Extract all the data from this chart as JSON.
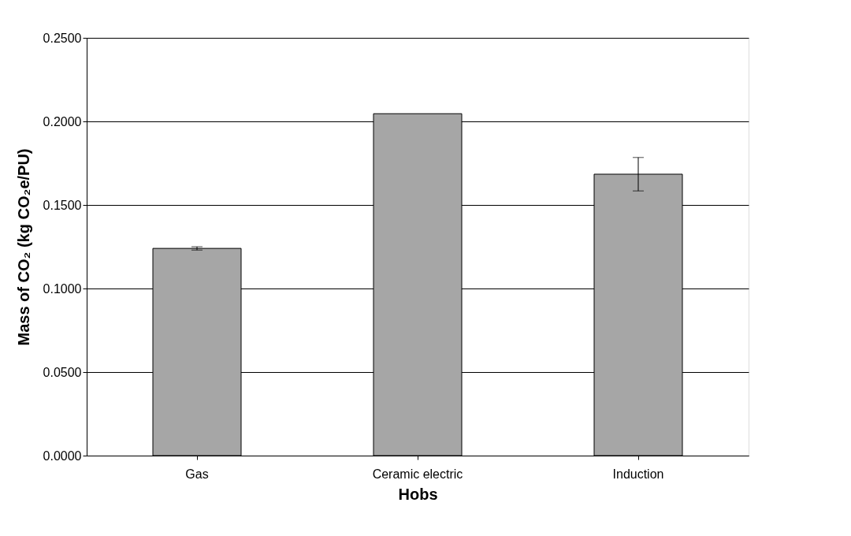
{
  "chart_data": {
    "type": "bar",
    "xlabel": "Hobs",
    "ylabel": "Mass of CO₂ (kg CO₂e/PU)",
    "categories": [
      "Gas",
      "Ceramic electric",
      "Induction"
    ],
    "values": [
      0.124,
      0.2046,
      0.1684
    ],
    "errors": [
      0.001,
      null,
      0.01
    ],
    "color": "#a6a6a6",
    "ylim": [
      0,
      0.25
    ],
    "yticks": [
      {
        "value": 0,
        "label": "0.0000"
      },
      {
        "value": 0.05,
        "label": "0.0500"
      },
      {
        "value": 0.1,
        "label": "0.1000"
      },
      {
        "value": 0.15,
        "label": "0.1500"
      },
      {
        "value": 0.2,
        "label": "0.2000"
      },
      {
        "value": 0.25,
        "label": "0.2500"
      }
    ],
    "grid": "y"
  }
}
